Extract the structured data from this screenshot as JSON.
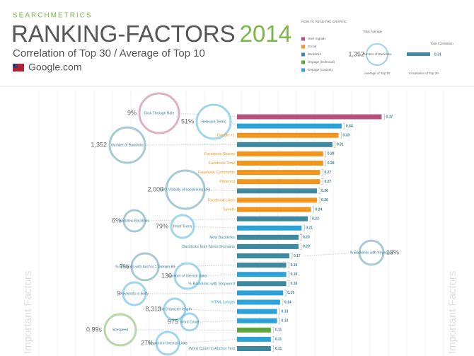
{
  "header": {
    "brand": "SEARCHMETRICS",
    "title": "RANKING-FACTORS",
    "year": "2014",
    "subtitle": "Correlation of Top 30 / Average of Top 10",
    "site": "Google.com"
  },
  "legend": {
    "title": "HOW TO READ THE GRAPHIC",
    "items": [
      {
        "name": "User Signals",
        "color": "#b5517c"
      },
      {
        "name": "Social",
        "color": "#f0961e"
      },
      {
        "name": "Backlinks",
        "color": "#3d8a9e"
      },
      {
        "name": "Onpage (technical)",
        "color": "#5aa83c"
      },
      {
        "name": "Onpage (content)",
        "color": "#2ba3d8"
      }
    ],
    "example": {
      "total_average": "Total Average",
      "average": "1,352",
      "factor": "Number of Backlinks",
      "total_correlation": "Total Correlation",
      "correlation": "0.31",
      "average_note": "Average of Top 10",
      "correlation_note": "Correlation of Top 30"
    }
  },
  "side_label": "Important Factors",
  "chart_data": {
    "type": "bar",
    "categories": [
      "Click Through Rate",
      "Relevant Terms",
      "Google +1",
      "Number of Backlinks",
      "Facebook Shares",
      "Facebook Total",
      "Facebook Comments",
      "Pinterest",
      "SEO-Visibility of backlinking URL",
      "Facebook Likes",
      "Tweets",
      "Nofollow-Backlinks",
      "Proof Terms",
      "New Backlinks",
      "Backlinks from News Domains",
      "% Backlinks with Keywords",
      "% Backlinks with Anchor = Domain.tld",
      "Number of Internal Links",
      "% Backlinks with Stopword",
      "Keywords in Body",
      "HTML Length",
      "Text Character length",
      "Word Count",
      "Sitespeed",
      "Keyword in internal Links",
      "Word Count in Anchor Text"
    ],
    "values": [
      0.47,
      0.34,
      0.33,
      0.31,
      0.28,
      0.28,
      0.27,
      0.27,
      0.26,
      0.26,
      0.24,
      0.23,
      0.21,
      0.2,
      0.2,
      0.17,
      0.16,
      0.16,
      0.16,
      0.15,
      0.14,
      0.13,
      0.13,
      0.11,
      0.11,
      0.11
    ],
    "value_labels": [
      "0.47",
      "0.34",
      "0.33",
      "0.31",
      "0.28",
      "0.28",
      "0.27",
      "0.27",
      "0.26",
      "0.26",
      "0.24",
      "0.23",
      "0.21",
      "0.20",
      "0.20",
      "0.17",
      "0.16",
      "0.16",
      "0.16",
      "0.15",
      "0.14",
      "0.13",
      "0.13",
      "0.11",
      "0.11",
      "0.11"
    ],
    "colors": [
      "#b5517c",
      "#2ba3d8",
      "#f0961e",
      "#3d8a9e",
      "#f0961e",
      "#f0961e",
      "#f0961e",
      "#f0961e",
      "#3d8a9e",
      "#f0961e",
      "#f0961e",
      "#3d8a9e",
      "#2ba3d8",
      "#3d8a9e",
      "#3d8a9e",
      "#3d8a9e",
      "#3d8a9e",
      "#2ba3d8",
      "#3d8a9e",
      "#2ba3d8",
      "#2ba3d8",
      "#2ba3d8",
      "#2ba3d8",
      "#5aa83c",
      "#2ba3d8",
      "#3d8a9e"
    ],
    "averages": [
      "9%",
      "51%",
      null,
      "1,352",
      null,
      null,
      null,
      null,
      "2,000",
      null,
      null,
      "6%",
      "79%",
      null,
      null,
      "13%",
      "7%",
      "130",
      null,
      "9",
      null,
      "8,313",
      "975",
      "0.99s",
      "27%",
      null
    ]
  }
}
